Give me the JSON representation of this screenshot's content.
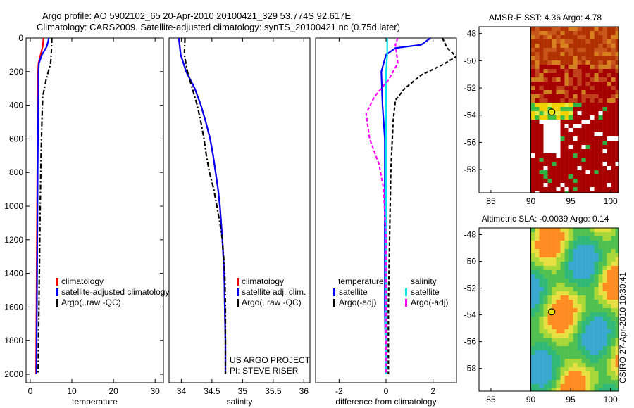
{
  "header": {
    "line1": "Argo profile: AO 5902102_65 20-Apr-2010 20100421_329 53.774S 92.617E",
    "line2": "Climatology: CARS2009. Satellite-adjusted climatology: synTS_20100421.nc (0.75d later)"
  },
  "colors": {
    "climatology": "#ff0000",
    "satellite": "#0000ff",
    "argo": "#000000",
    "cyan": "#00e5ee",
    "magenta": "#ff00ff"
  },
  "chart_data": [
    {
      "type": "line",
      "id": "temperature",
      "xlabel": "temperature",
      "xlim": [
        -1,
        32
      ],
      "xticks": [
        0,
        10,
        20,
        30
      ],
      "ylim": [
        2050,
        0
      ],
      "yticks": [
        0,
        200,
        400,
        600,
        800,
        1000,
        1200,
        1400,
        1600,
        1800,
        2000
      ],
      "series": [
        {
          "name": "climatology",
          "color": "#ff0000",
          "dash": "",
          "points": [
            [
              3.2,
              0
            ],
            [
              3.0,
              50
            ],
            [
              2.5,
              100
            ],
            [
              2.0,
              150
            ],
            [
              1.9,
              200
            ],
            [
              1.9,
              300
            ],
            [
              1.8,
              500
            ],
            [
              1.7,
              800
            ],
            [
              1.6,
              1200
            ],
            [
              1.5,
              1600
            ],
            [
              1.4,
              2000
            ]
          ]
        },
        {
          "name": "satellite-adjusted climatology",
          "color": "#0000ff",
          "dash": "",
          "points": [
            [
              4.5,
              0
            ],
            [
              4.0,
              50
            ],
            [
              2.8,
              100
            ],
            [
              2.1,
              150
            ],
            [
              2.0,
              200
            ],
            [
              2.0,
              300
            ],
            [
              1.9,
              500
            ],
            [
              1.8,
              800
            ],
            [
              1.7,
              1200
            ],
            [
              1.6,
              1600
            ],
            [
              1.5,
              2000
            ]
          ]
        },
        {
          "name": "Argo(..raw -QC)",
          "color": "#000000",
          "dash": "7,3,2,3",
          "points": [
            [
              5.2,
              0
            ],
            [
              5.1,
              80
            ],
            [
              4.9,
              150
            ],
            [
              3.8,
              250
            ],
            [
              3.0,
              350
            ],
            [
              2.8,
              500
            ],
            [
              2.6,
              700
            ],
            [
              2.4,
              1000
            ],
            [
              2.2,
              1400
            ],
            [
              2.0,
              1800
            ],
            [
              1.9,
              2000
            ]
          ]
        }
      ],
      "legend": [
        "climatology",
        "satellite-adjusted climatology",
        "Argo(..raw -QC)"
      ]
    },
    {
      "type": "line",
      "id": "salinity",
      "xlabel": "salinity",
      "xlim": [
        33.8,
        36.1
      ],
      "xticks": [
        34,
        34.5,
        35,
        35.5,
        36
      ],
      "ylim": [
        2050,
        0
      ],
      "yticks": [],
      "series": [
        {
          "name": "climatology",
          "color": "#ff0000",
          "dash": "",
          "points": [
            [
              33.96,
              0
            ],
            [
              33.99,
              100
            ],
            [
              34.08,
              200
            ],
            [
              34.22,
              300
            ],
            [
              34.32,
              400
            ],
            [
              34.4,
              500
            ],
            [
              34.47,
              600
            ],
            [
              34.52,
              700
            ],
            [
              34.56,
              800
            ],
            [
              34.6,
              900
            ],
            [
              34.63,
              1000
            ],
            [
              34.67,
              1200
            ],
            [
              34.7,
              1400
            ],
            [
              34.71,
              1600
            ],
            [
              34.72,
              1800
            ],
            [
              34.72,
              2000
            ]
          ]
        },
        {
          "name": "satellite adj. clim.",
          "color": "#0000ff",
          "dash": "",
          "points": [
            [
              33.96,
              0
            ],
            [
              33.99,
              100
            ],
            [
              34.08,
              200
            ],
            [
              34.22,
              300
            ],
            [
              34.32,
              400
            ],
            [
              34.4,
              500
            ],
            [
              34.47,
              600
            ],
            [
              34.52,
              700
            ],
            [
              34.56,
              800
            ],
            [
              34.6,
              900
            ],
            [
              34.63,
              1000
            ],
            [
              34.67,
              1200
            ],
            [
              34.7,
              1400
            ],
            [
              34.71,
              1600
            ],
            [
              34.72,
              1800
            ],
            [
              34.72,
              2000
            ]
          ]
        },
        {
          "name": "Argo(..raw -QC)",
          "color": "#000000",
          "dash": "7,3,2,3",
          "points": [
            [
              34.06,
              0
            ],
            [
              34.05,
              100
            ],
            [
              34.1,
              200
            ],
            [
              34.18,
              300
            ],
            [
              34.26,
              400
            ],
            [
              34.32,
              500
            ],
            [
              34.37,
              600
            ],
            [
              34.41,
              700
            ],
            [
              34.46,
              800
            ],
            [
              34.53,
              900
            ],
            [
              34.58,
              1000
            ],
            [
              34.63,
              1100
            ],
            [
              34.67,
              1200
            ],
            [
              34.71,
              1400
            ],
            [
              34.72,
              1600
            ],
            [
              34.72,
              1800
            ],
            [
              34.72,
              2000
            ]
          ]
        }
      ],
      "legend": [
        "climatology",
        "satellite adj. clim.",
        "Argo(..raw -QC)"
      ],
      "credit": [
        "US ARGO PROJECT",
        "PI: STEVE RISER"
      ]
    },
    {
      "type": "line",
      "id": "difference",
      "xlabel": "difference from climatology",
      "xlim": [
        -3,
        3
      ],
      "xticks": [
        -2,
        0,
        2
      ],
      "ylim": [
        2050,
        0
      ],
      "yticks": [],
      "series": [
        {
          "name": "satellite (temperature)",
          "color": "#0000ff",
          "dash": "",
          "points": [
            [
              1.9,
              0
            ],
            [
              1.5,
              40
            ],
            [
              0.4,
              60
            ],
            [
              0.0,
              100
            ],
            [
              -0.2,
              200
            ],
            [
              -0.15,
              400
            ],
            [
              -0.05,
              600
            ],
            [
              -0.05,
              1000
            ],
            [
              -0.05,
              1600
            ],
            [
              0.0,
              2000
            ]
          ]
        },
        {
          "name": "satellite (salinity)",
          "color": "#00e5ee",
          "dash": "",
          "points": [
            [
              0.05,
              0
            ],
            [
              0.05,
              100
            ],
            [
              0.0,
              200
            ],
            [
              0.0,
              500
            ],
            [
              0.0,
              1000
            ],
            [
              0.0,
              2000
            ]
          ]
        },
        {
          "name": "Argo(-adj) (temperature)",
          "color": "#000000",
          "dash": "5,3",
          "points": [
            [
              2.4,
              0
            ],
            [
              2.6,
              60
            ],
            [
              3.0,
              110
            ],
            [
              2.4,
              160
            ],
            [
              1.5,
              220
            ],
            [
              0.8,
              300
            ],
            [
              0.4,
              370
            ],
            [
              0.3,
              500
            ],
            [
              0.2,
              800
            ],
            [
              0.15,
              1200
            ],
            [
              0.1,
              1600
            ],
            [
              0.1,
              2000
            ]
          ]
        },
        {
          "name": "Argo(-adj) (salinity)",
          "color": "#ff00ff",
          "dash": "5,3",
          "points": [
            [
              0.5,
              0
            ],
            [
              0.4,
              40
            ],
            [
              0.5,
              150
            ],
            [
              0.1,
              250
            ],
            [
              -0.5,
              350
            ],
            [
              -0.85,
              450
            ],
            [
              -0.7,
              600
            ],
            [
              -0.3,
              750
            ],
            [
              -0.1,
              900
            ],
            [
              0.0,
              1200
            ],
            [
              0.0,
              2000
            ]
          ]
        }
      ],
      "legend_groups": {
        "left_title": "temperature",
        "right_title": "salinity",
        "left": [
          "satellite",
          "Argo(-adj)"
        ],
        "right": [
          "satellite",
          "Argo(-adj)"
        ]
      }
    }
  ],
  "maps": [
    {
      "title": "AMSR-E SST: 4.36 Argo: 4.78",
      "xticks": [
        85,
        90,
        95,
        100
      ],
      "yticks": [
        -48,
        -50,
        -52,
        -54,
        -56,
        -58
      ]
    },
    {
      "title": "Altimetric SLA: -0.0039 Argo: 0.14",
      "xticks": [
        85,
        90,
        95,
        100
      ],
      "yticks": [
        -48,
        -50,
        -52,
        -54,
        -56,
        -58
      ]
    }
  ],
  "float_position": {
    "lon": 92.617,
    "lat": -53.774
  },
  "side_stamp": "CSIRO 27-Apr-2010 10:30:41"
}
